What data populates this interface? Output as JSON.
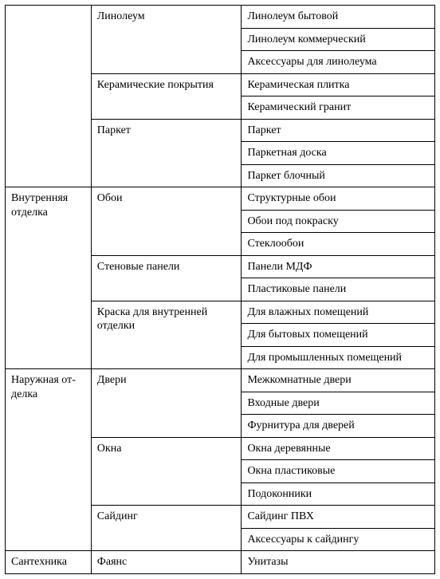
{
  "type": "table",
  "background_color": "#ffffff",
  "border_color": "#000000",
  "text_color": "#000000",
  "font_family": "Times New Roman",
  "font_size_pt": 10.5,
  "columns": [
    {
      "key": "cat",
      "width_pct": 20
    },
    {
      "key": "subcat",
      "width_pct": 35
    },
    {
      "key": "item",
      "width_pct": 45
    }
  ],
  "rows": [
    {
      "cat": "",
      "subcat": "Линолеум",
      "item": "Линолеум бытовой"
    },
    {
      "cat": null,
      "subcat": null,
      "item": "Линолеум коммерческий"
    },
    {
      "cat": null,
      "subcat": null,
      "item": "Аксессуары для линолеума"
    },
    {
      "cat": null,
      "subcat": "Керамические покрытия",
      "item": "Керамическая плитка"
    },
    {
      "cat": null,
      "subcat": null,
      "item": "Керамический гранит"
    },
    {
      "cat": null,
      "subcat": "Паркет",
      "item": "Паркет"
    },
    {
      "cat": null,
      "subcat": null,
      "item": "Паркетная доска"
    },
    {
      "cat": null,
      "subcat": null,
      "item": "Паркет блочный"
    },
    {
      "cat": "Внутренняя отделка",
      "subcat": "Обои",
      "item": "Структурные обои"
    },
    {
      "cat": null,
      "subcat": null,
      "item": "Обои под покраску"
    },
    {
      "cat": null,
      "subcat": null,
      "item": "Стеклообои"
    },
    {
      "cat": null,
      "subcat": "Стеновые панели",
      "item": "Панели МДФ"
    },
    {
      "cat": null,
      "subcat": null,
      "item": "Пластиковые панели"
    },
    {
      "cat": null,
      "subcat": "Краска для внутренней отделки",
      "item": "Для влажных помещений"
    },
    {
      "cat": null,
      "subcat": null,
      "item": "Для бытовых помещений"
    },
    {
      "cat": null,
      "subcat": null,
      "item": "Для промышленных помещений"
    },
    {
      "cat": "Наружная от­делка",
      "subcat": "Двери",
      "item": "Межкомнатные двери"
    },
    {
      "cat": null,
      "subcat": null,
      "item": "Входные двери"
    },
    {
      "cat": null,
      "subcat": null,
      "item": "Фурнитура для дверей"
    },
    {
      "cat": null,
      "subcat": "Окна",
      "item": "Окна деревянные"
    },
    {
      "cat": null,
      "subcat": null,
      "item": "Окна пластиковые"
    },
    {
      "cat": null,
      "subcat": null,
      "item": "Подоконники"
    },
    {
      "cat": null,
      "subcat": "Сайдинг",
      "item": "Сайдинг ПВХ"
    },
    {
      "cat": null,
      "subcat": null,
      "item": "Аксессуары к сайдингу"
    },
    {
      "cat": "Сантехника",
      "subcat": "Фаянс",
      "item": "Унитазы"
    }
  ]
}
